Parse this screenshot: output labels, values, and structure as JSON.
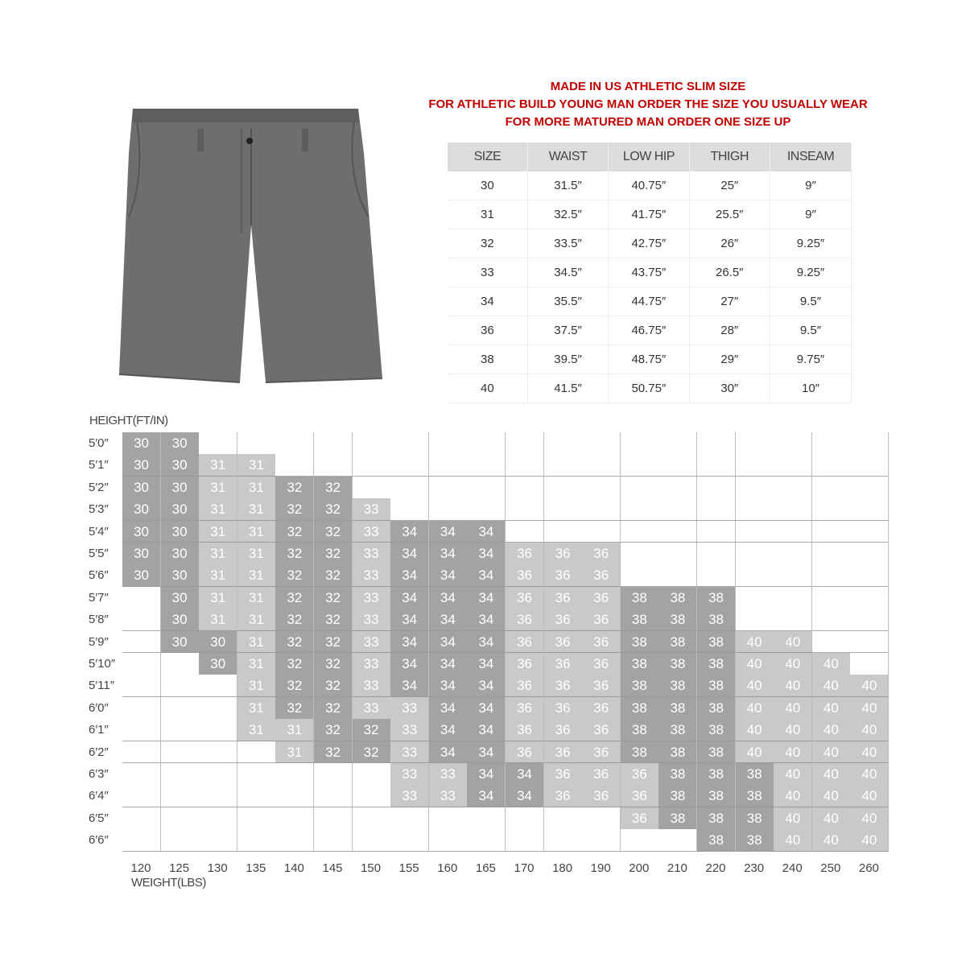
{
  "notice": {
    "line1": "MADE IN US ATHLETIC SLIM SIZE",
    "line2": "FOR ATHLETIC BUILD YOUNG MAN ORDER THE SIZE YOU USUALLY WEAR",
    "line3": "FOR MORE MATURED MAN ORDER ONE SIZE UP"
  },
  "colors": {
    "notice": "#c00000",
    "dark_cell": "#a3a3a3",
    "light_cell": "#c9c9c9",
    "header": "#dcdcdc",
    "shorts": "#6e6e70"
  },
  "size_table": {
    "headers": [
      "SIZE",
      "WAIST",
      "LOW HIP",
      "THIGH",
      "INSEAM"
    ],
    "rows": [
      [
        "30",
        "31.5″",
        "40.75″",
        "25″",
        "9″"
      ],
      [
        "31",
        "32.5″",
        "41.75″",
        "25.5″",
        "9″"
      ],
      [
        "32",
        "33.5″",
        "42.75″",
        "26″",
        "9.25″"
      ],
      [
        "33",
        "34.5″",
        "43.75″",
        "26.5″",
        "9.25″"
      ],
      [
        "34",
        "35.5″",
        "44.75″",
        "27″",
        "9.5″"
      ],
      [
        "36",
        "37.5″",
        "46.75″",
        "28″",
        "9.5″"
      ],
      [
        "38",
        "39.5″",
        "48.75″",
        "29″",
        "9.75″"
      ],
      [
        "40",
        "41.5″",
        "50.75″",
        "30″",
        "10″"
      ]
    ]
  },
  "size_grid": {
    "height_label": "HEIGHT(FT/IN)",
    "weight_label": "WEIGHT(LBS)",
    "weights": [
      "120",
      "125",
      "130",
      "135",
      "140",
      "145",
      "150",
      "155",
      "160",
      "165",
      "170",
      "180",
      "190",
      "200",
      "210",
      "220",
      "230",
      "240",
      "250",
      "260"
    ],
    "heights": [
      "5′0″",
      "5′1″",
      "5′2″",
      "5′3″",
      "5′4″",
      "5′5″",
      "5′6″",
      "5′7″",
      "5′8″",
      "5′9″",
      "5′10″",
      "5′11″",
      "6′0″",
      "6′1″",
      "6′2″",
      "6′3″",
      "6′4″",
      "6′5″",
      "6′6″"
    ],
    "cells": [
      [
        "30",
        "30",
        "",
        "",
        "",
        "",
        "",
        "",
        "",
        "",
        "",
        "",
        "",
        "",
        "",
        "",
        "",
        "",
        "",
        ""
      ],
      [
        "30",
        "30",
        "31",
        "31",
        "",
        "",
        "",
        "",
        "",
        "",
        "",
        "",
        "",
        "",
        "",
        "",
        "",
        "",
        "",
        ""
      ],
      [
        "30",
        "30",
        "31",
        "31",
        "32",
        "32",
        "",
        "",
        "",
        "",
        "",
        "",
        "",
        "",
        "",
        "",
        "",
        "",
        "",
        ""
      ],
      [
        "30",
        "30",
        "31",
        "31",
        "32",
        "32",
        "33",
        "",
        "",
        "",
        "",
        "",
        "",
        "",
        "",
        "",
        "",
        "",
        "",
        ""
      ],
      [
        "30",
        "30",
        "31",
        "31",
        "32",
        "32",
        "33",
        "34",
        "34",
        "34",
        "",
        "",
        "",
        "",
        "",
        "",
        "",
        "",
        "",
        ""
      ],
      [
        "30",
        "30",
        "31",
        "31",
        "32",
        "32",
        "33",
        "34",
        "34",
        "34",
        "36",
        "36",
        "36",
        "",
        "",
        "",
        "",
        "",
        "",
        ""
      ],
      [
        "30",
        "30",
        "31",
        "31",
        "32",
        "32",
        "33",
        "34",
        "34",
        "34",
        "36",
        "36",
        "36",
        "",
        "",
        "",
        "",
        "",
        "",
        ""
      ],
      [
        "",
        "30",
        "31",
        "31",
        "32",
        "32",
        "33",
        "34",
        "34",
        "34",
        "36",
        "36",
        "36",
        "38",
        "38",
        "38",
        "",
        "",
        "",
        ""
      ],
      [
        "",
        "30",
        "31",
        "31",
        "32",
        "32",
        "33",
        "34",
        "34",
        "34",
        "36",
        "36",
        "36",
        "38",
        "38",
        "38",
        "",
        "",
        "",
        ""
      ],
      [
        "",
        "30",
        "30",
        "31",
        "32",
        "32",
        "33",
        "34",
        "34",
        "34",
        "36",
        "36",
        "36",
        "38",
        "38",
        "38",
        "40",
        "40",
        "",
        ""
      ],
      [
        "",
        "",
        "30",
        "31",
        "32",
        "32",
        "33",
        "34",
        "34",
        "34",
        "36",
        "36",
        "36",
        "38",
        "38",
        "38",
        "40",
        "40",
        "40",
        ""
      ],
      [
        "",
        "",
        "",
        "31",
        "32",
        "32",
        "33",
        "34",
        "34",
        "34",
        "36",
        "36",
        "36",
        "38",
        "38",
        "38",
        "40",
        "40",
        "40",
        "40"
      ],
      [
        "",
        "",
        "",
        "31",
        "32",
        "32",
        "33",
        "33",
        "34",
        "34",
        "36",
        "36",
        "36",
        "38",
        "38",
        "38",
        "40",
        "40",
        "40",
        "40"
      ],
      [
        "",
        "",
        "",
        "31",
        "31",
        "32",
        "32",
        "33",
        "34",
        "34",
        "36",
        "36",
        "36",
        "38",
        "38",
        "38",
        "40",
        "40",
        "40",
        "40"
      ],
      [
        "",
        "",
        "",
        "",
        "31",
        "32",
        "32",
        "33",
        "34",
        "34",
        "36",
        "36",
        "36",
        "38",
        "38",
        "38",
        "40",
        "40",
        "40",
        "40"
      ],
      [
        "",
        "",
        "",
        "",
        "",
        "",
        "",
        "33",
        "33",
        "34",
        "34",
        "36",
        "36",
        "36",
        "38",
        "38",
        "38",
        "40",
        "40",
        "40"
      ],
      [
        "",
        "",
        "",
        "",
        "",
        "",
        "",
        "33",
        "33",
        "34",
        "34",
        "36",
        "36",
        "36",
        "38",
        "38",
        "38",
        "40",
        "40",
        "40"
      ],
      [
        "",
        "",
        "",
        "",
        "",
        "",
        "",
        "",
        "",
        "",
        "",
        "",
        "",
        "36",
        "38",
        "38",
        "38",
        "40",
        "40",
        "40"
      ],
      [
        "",
        "",
        "",
        "",
        "",
        "",
        "",
        "",
        "",
        "",
        "",
        "",
        "",
        "",
        "",
        "38",
        "38",
        "40",
        "40",
        "40"
      ]
    ]
  }
}
